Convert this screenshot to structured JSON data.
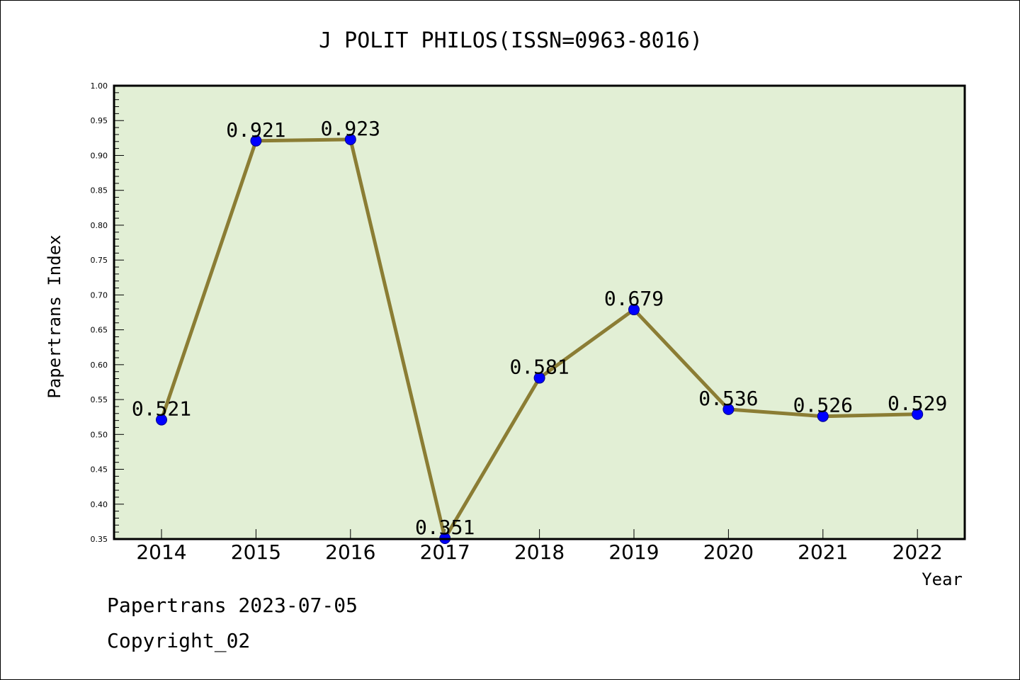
{
  "chart_data": {
    "type": "line",
    "title": "J POLIT PHILOS(ISSN=0963-8016)",
    "xlabel": "Year",
    "ylabel": "Papertrans Index",
    "categories": [
      "2014",
      "2015",
      "2016",
      "2017",
      "2018",
      "2019",
      "2020",
      "2021",
      "2022"
    ],
    "values": [
      0.521,
      0.921,
      0.923,
      0.351,
      0.581,
      0.679,
      0.536,
      0.526,
      0.529
    ],
    "data_labels": [
      "0.521",
      "0.921",
      "0.923",
      "0.351",
      "0.581",
      "0.679",
      "0.536",
      "0.526",
      "0.529"
    ],
    "ylim": [
      0.35,
      1.0
    ],
    "yticks": [
      "0.35",
      "0.40",
      "0.45",
      "0.50",
      "0.55",
      "0.60",
      "0.65",
      "0.70",
      "0.75",
      "0.80",
      "0.85",
      "0.90",
      "0.95",
      "1.00"
    ],
    "grid": false,
    "colors": {
      "plot_background": "#e2efd5",
      "line": "#8b7d34",
      "marker": "#0000ff"
    }
  },
  "footer": {
    "date_line": "Papertrans 2023-07-05",
    "copyright": "Copyright_02"
  }
}
